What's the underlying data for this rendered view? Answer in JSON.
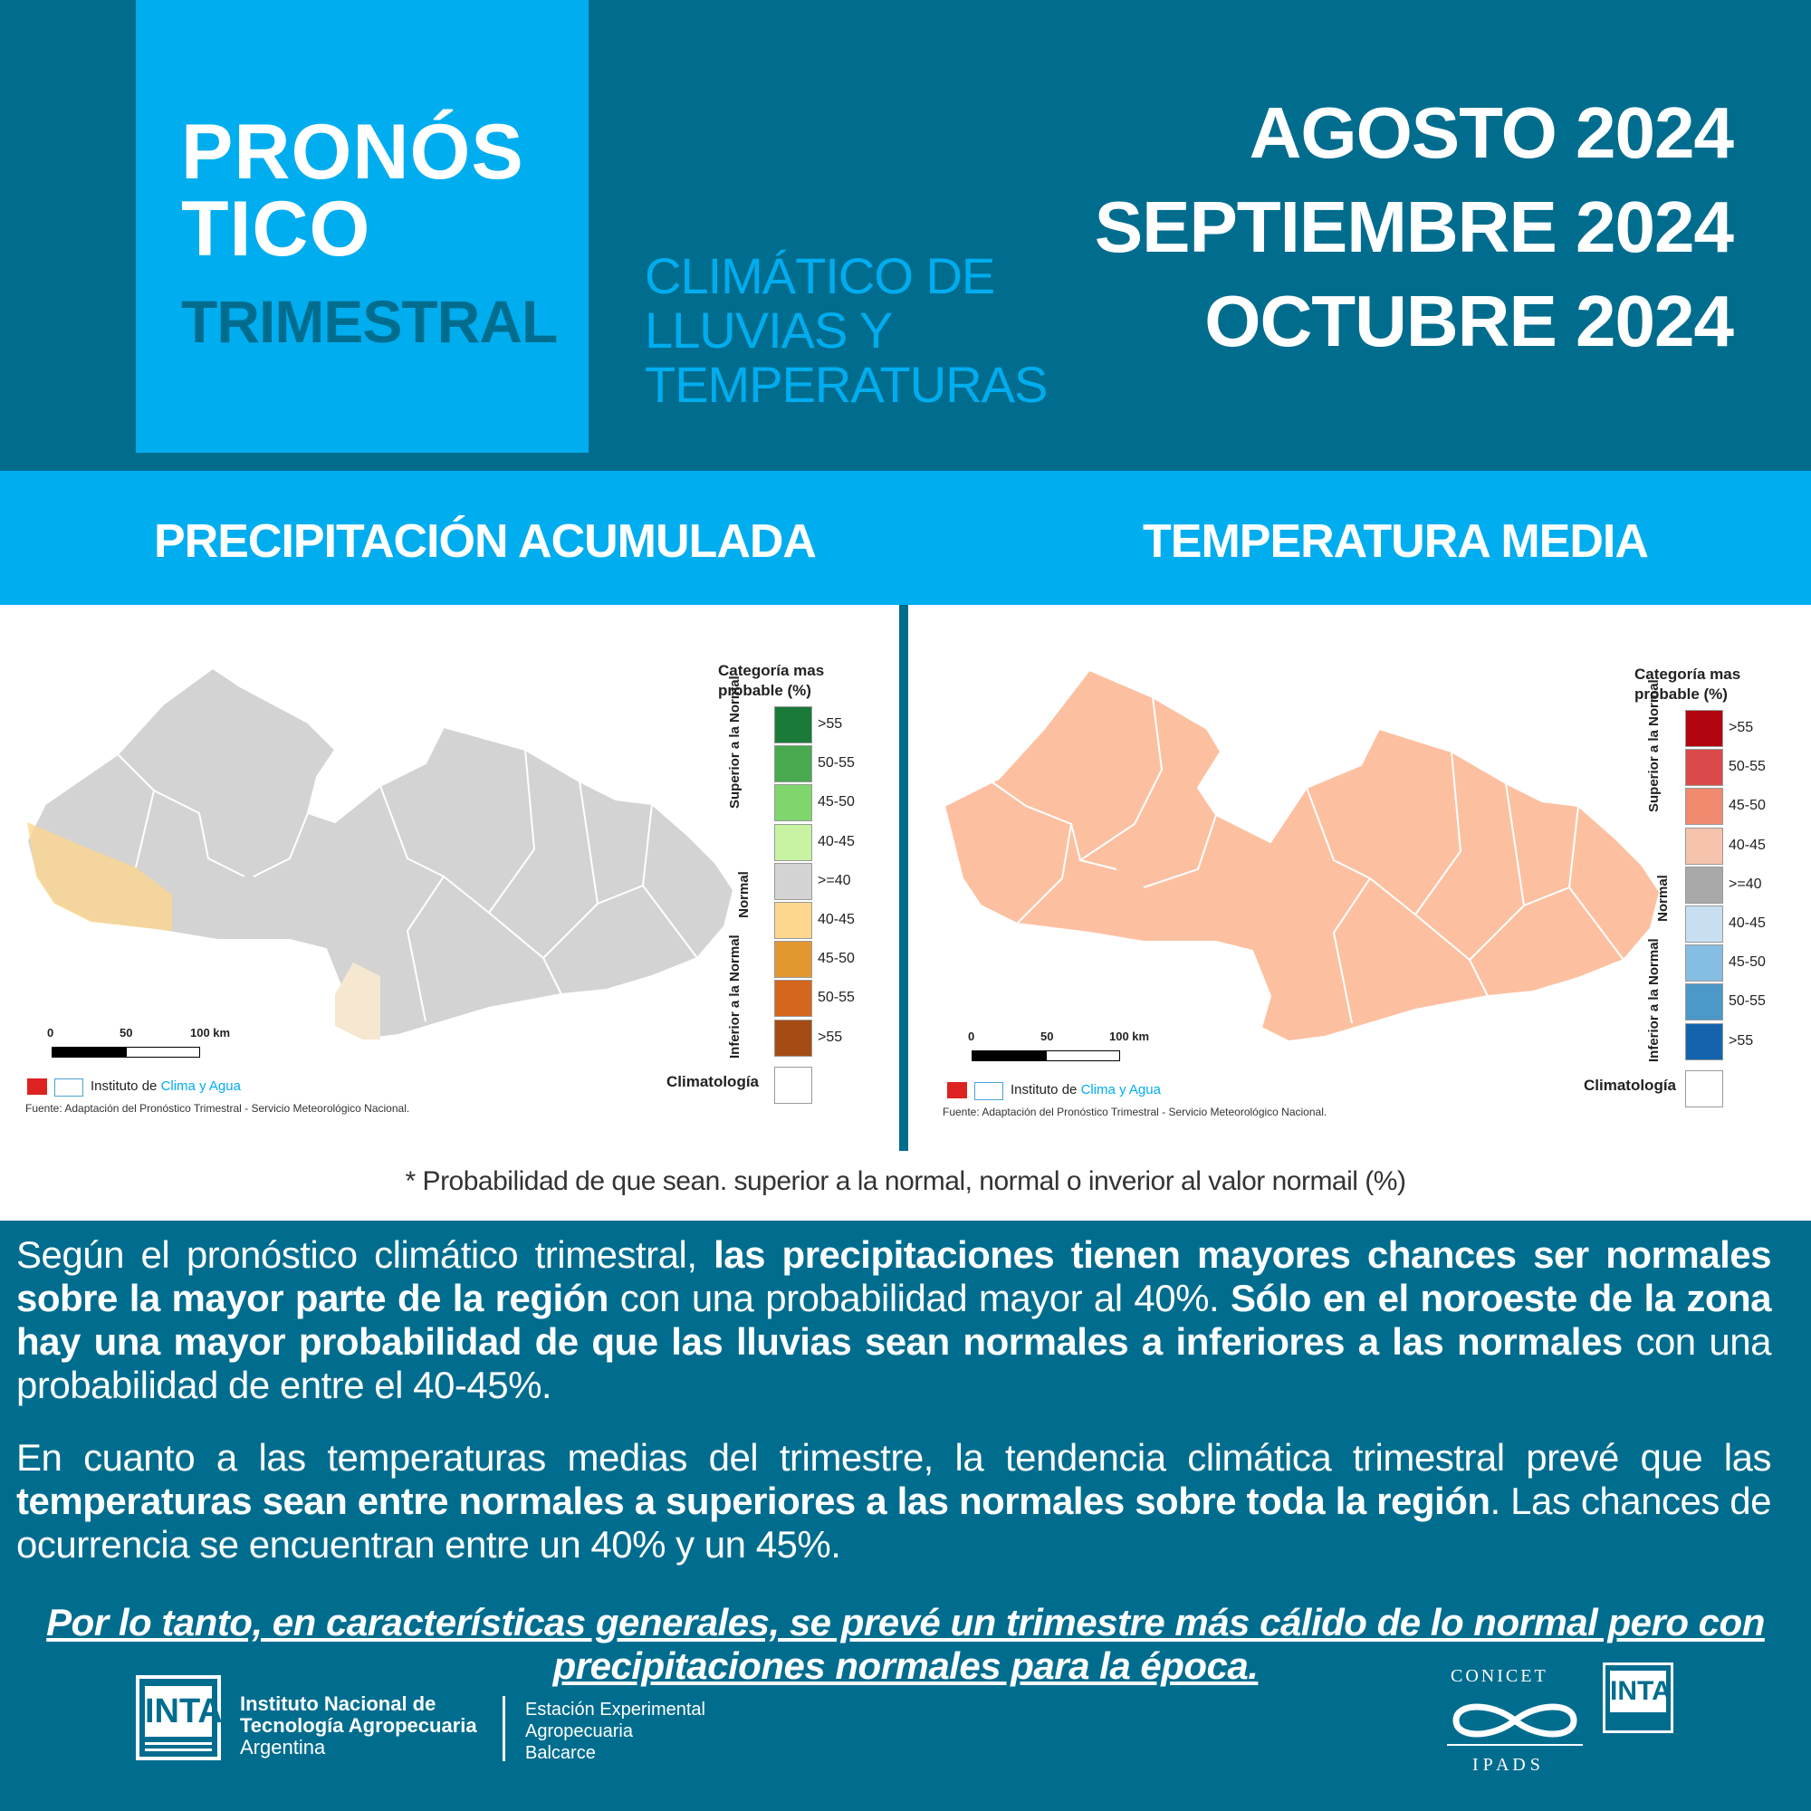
{
  "header": {
    "title_line1": "PRONÓS",
    "title_line2": "TICO",
    "title_line3": "TRIMESTRAL",
    "subtitle_lines": [
      "CLIMÁTICO DE",
      "LLUVIAS Y",
      "TEMPERATURAS"
    ],
    "months": [
      "AGOSTO 2024",
      "SEPTIEMBRE 2024",
      "OCTUBRE 2024"
    ]
  },
  "sections": {
    "precip_title": "PRECIPITACIÓN ACUMULADA",
    "temp_title": "TEMPERATURA MEDIA"
  },
  "precip_map": {
    "legend_title": [
      "Categoría mas",
      "probable (%)"
    ],
    "group_upper": "Superior a la Normal",
    "group_normal": "Normal",
    "group_lower": "Inferior a la Normal",
    "labels": [
      ">55",
      "50-55",
      "45-50",
      "40-45",
      ">=40",
      "40-45",
      "45-50",
      "50-55",
      ">55"
    ],
    "colors": [
      "#1a7a37",
      "#48a94f",
      "#7fd66c",
      "#c7f3a2",
      "#d3d3d3",
      "#fdd690",
      "#e3972f",
      "#d4661d",
      "#a54b14"
    ],
    "climatologia": "Climatología",
    "scale_labels": [
      "0",
      "50",
      "100 km"
    ],
    "credit_prefix": "Instituto de",
    "credit_highlight": "Clima y Agua",
    "source": "Fuente: Adaptación del Pronóstico Trimestral - Servicio Meteorológico Nacional."
  },
  "temp_map": {
    "legend_title": [
      "Categoría mas",
      "probable (%)"
    ],
    "group_upper": "Superior a la Normal",
    "group_normal": "Normal",
    "group_lower": "Inferior a la Normal",
    "labels": [
      ">55",
      "50-55",
      "45-50",
      "40-45",
      ">=40",
      "40-45",
      "45-50",
      "50-55",
      ">55"
    ],
    "colors": [
      "#b2050f",
      "#da4a4a",
      "#ef8a6f",
      "#f6c3ac",
      "#a9a9a9",
      "#c7dff0",
      "#86bde3",
      "#4b98c9",
      "#1364ad"
    ],
    "climatologia": "Climatología",
    "scale_labels": [
      "0",
      "50",
      "100 km"
    ],
    "credit_prefix": "Instituto de",
    "credit_highlight": "Clima y Agua",
    "source": "Fuente: Adaptación del Pronóstico Trimestral - Servicio Meteorológico Nacional."
  },
  "footnote": "* Probabilidad de que sean. superior a la normal, normal o inverior al valor normail (%)",
  "paragraph1": {
    "p1": "Según el pronóstico climático trimestral, ",
    "b1": "las precipitaciones tienen mayores chances ser normales sobre la mayor parte de la región",
    "p2": " con una probabilidad mayor al 40%. ",
    "b2": "Sólo en el noroeste de la zona hay una mayor probabilidad de que las lluvias sean normales a inferiores a las normales",
    "p3": " con una probabilidad de entre el 40-45%."
  },
  "paragraph2": {
    "p1": "En cuanto a las temperaturas medias del trimestre, la tendencia climática trimestral prevé que las ",
    "b1": "temperaturas sean entre normales a superiores a las normales sobre toda la región",
    "p2": ". Las chances de ocurrencia se encuentran entre un 40% y un 45%."
  },
  "conclusion": "Por lo tanto, en características generales, se prevé un trimestre más cálido de lo normal pero con precipitaciones normales para la época.",
  "footer": {
    "inta_logo": "INTA",
    "inta_name": [
      "Instituto Nacional de",
      "Tecnología Agropecuaria",
      "Argentina"
    ],
    "station": [
      "Estación Experimental",
      "Agropecuaria",
      "Balcarce"
    ],
    "conicet": "CONICET",
    "ipads": "I P A D S",
    "inta_logo_small": "INTA"
  }
}
